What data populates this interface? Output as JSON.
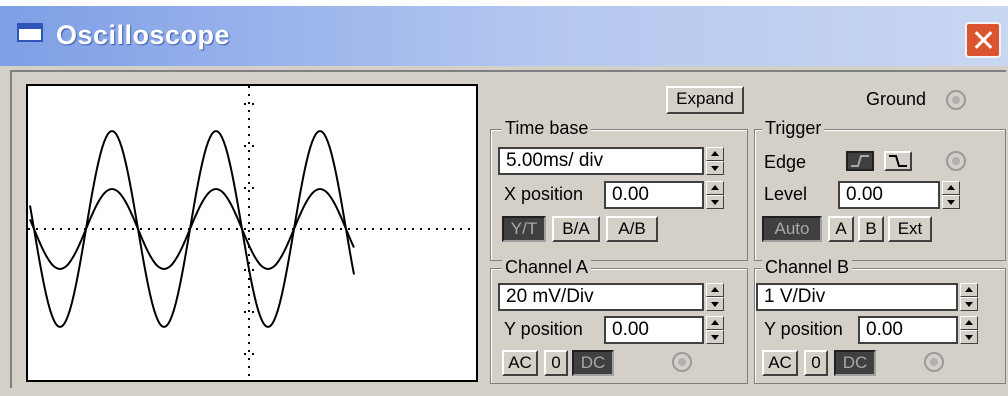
{
  "window": {
    "title": "Oscilloscope",
    "title_icon": "window-icon",
    "close_icon": "close-icon"
  },
  "colors": {
    "titlebar_start": "#7e9fe6",
    "titlebar_end": "#c9d6f2",
    "close": "#d9542f",
    "face": "#d4d0c8",
    "pressed": "#404040"
  },
  "display": {
    "traces": [
      {
        "name": "",
        "color": "#000000"
      },
      {
        "name": "",
        "color": "#000000"
      }
    ]
  },
  "expand_label": "Expand",
  "ground_label": "Ground",
  "timebase": {
    "title": "Time base",
    "value": "5.00ms/ div",
    "xpos_label": "X position",
    "xpos_value": "0.00",
    "modes": [
      "Y/T",
      "B/A",
      "A/B"
    ],
    "active_mode": "Y/T"
  },
  "trigger": {
    "title": "Trigger",
    "edge_label": "Edge",
    "edge_rising_icon": "rising-edge-icon",
    "edge_falling_icon": "falling-edge-icon",
    "level_label": "Level",
    "level_value": "0.00",
    "modes": [
      "Auto",
      "A",
      "B",
      "Ext"
    ],
    "active_mode": "Auto"
  },
  "channel_a": {
    "title": "Channel A",
    "scale": "20 mV/Div",
    "ypos_label": "Y position",
    "ypos_value": "0.00",
    "coupling": [
      "AC",
      "0",
      "DC"
    ],
    "active_coupling": "DC"
  },
  "channel_b": {
    "title": "Channel B",
    "scale": "1  V/Div",
    "ypos_label": "Y position",
    "ypos_value": "0.00",
    "coupling": [
      "AC",
      "0",
      "DC"
    ],
    "active_coupling": "DC"
  }
}
